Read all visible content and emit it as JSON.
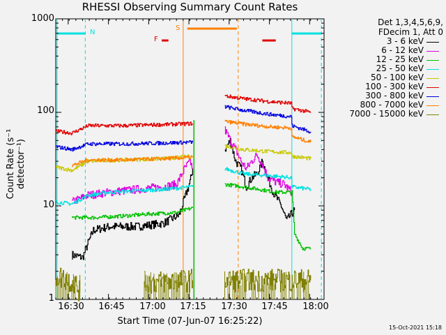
{
  "chart_data": {
    "type": "line",
    "title": "RHESSI Observing Summary Count Rates",
    "xlabel": "Start Time (07-Jun-07 16:25:22)",
    "ylabel": "Count Rate (s⁻¹ detector⁻¹)",
    "yscale": "log",
    "ylim": [
      1,
      1000
    ],
    "xlim_minutes_after_1625": [
      0,
      100
    ],
    "x_ticks": [
      "16:30",
      "16:45",
      "17:00",
      "17:15",
      "17:30",
      "17:45",
      "18:00"
    ],
    "y_ticks": [
      "1",
      "10",
      "100",
      "1000"
    ],
    "legend_header": [
      "Det 1,3,4,5,6,9,",
      "FDecim 1, Att 0"
    ],
    "series": [
      {
        "name": "3 - 6 keV",
        "color": "#000000",
        "segments": [
          [
            [
              6,
              3
            ],
            [
              10,
              2.8
            ],
            [
              12,
              4
            ],
            [
              14,
              5.5
            ],
            [
              20,
              6
            ],
            [
              30,
              6
            ],
            [
              40,
              6.5
            ],
            [
              46,
              8
            ],
            [
              48,
              12
            ],
            [
              50,
              18
            ],
            [
              51,
              25
            ]
          ],
          [
            [
              63,
              40
            ],
            [
              65,
              50
            ],
            [
              67,
              30
            ],
            [
              69,
              25
            ],
            [
              71,
              16
            ],
            [
              73,
              20
            ],
            [
              75,
              22
            ],
            [
              77,
              30
            ],
            [
              79,
              20
            ],
            [
              81,
              14
            ],
            [
              84,
              10
            ],
            [
              86,
              7
            ],
            [
              89,
              9
            ]
          ]
        ]
      },
      {
        "name": "6 - 12 keV",
        "color": "#e000e0",
        "segments": [
          [
            [
              6,
              11
            ],
            [
              12,
              13
            ],
            [
              20,
              14
            ],
            [
              30,
              15
            ],
            [
              40,
              16
            ],
            [
              45,
              17
            ],
            [
              48,
              25
            ],
            [
              50,
              30
            ],
            [
              51,
              25
            ]
          ],
          [
            [
              63,
              65
            ],
            [
              65,
              50
            ],
            [
              67,
              40
            ],
            [
              69,
              30
            ],
            [
              71,
              25
            ],
            [
              73,
              30
            ],
            [
              75,
              35
            ],
            [
              77,
              28
            ],
            [
              79,
              20
            ],
            [
              82,
              18
            ],
            [
              85,
              17
            ],
            [
              88,
              14
            ]
          ]
        ]
      },
      {
        "name": "12 - 25 keV",
        "color": "#00c000",
        "segments": [
          [
            [
              6,
              7.5
            ],
            [
              15,
              7.5
            ],
            [
              25,
              7.8
            ],
            [
              35,
              8.2
            ],
            [
              45,
              8.5
            ],
            [
              51,
              9.5
            ]
          ],
          [
            [
              63,
              17
            ],
            [
              70,
              16
            ],
            [
              76,
              15
            ],
            [
              82,
              14
            ],
            [
              88,
              14
            ],
            [
              89,
              5
            ],
            [
              92,
              3.5
            ],
            [
              95,
              3.5
            ]
          ]
        ]
      },
      {
        "name": "25 - 50 keV",
        "color": "#00e0e0",
        "segments": [
          [
            [
              0,
              11
            ],
            [
              6,
              10.5
            ],
            [
              12,
              13
            ],
            [
              20,
              14
            ],
            [
              30,
              14.5
            ],
            [
              40,
              15
            ],
            [
              51,
              16
            ]
          ],
          [
            [
              63,
              25
            ],
            [
              70,
              22
            ],
            [
              80,
              21
            ],
            [
              88,
              20
            ],
            [
              88,
              16
            ],
            [
              95,
              15
            ]
          ]
        ]
      },
      {
        "name": "50 - 100 keV",
        "color": "#c8c800",
        "segments": [
          [
            [
              0,
              26
            ],
            [
              6,
              24
            ],
            [
              12,
              30
            ],
            [
              25,
              31
            ],
            [
              40,
              32
            ],
            [
              51,
              34
            ]
          ],
          [
            [
              63,
              44
            ],
            [
              70,
              40
            ],
            [
              80,
              38
            ],
            [
              88,
              37
            ],
            [
              88,
              34
            ],
            [
              95,
              32
            ]
          ]
        ]
      },
      {
        "name": "100 - 300 keV",
        "color": "#e00000",
        "segments": [
          [
            [
              0,
              63
            ],
            [
              6,
              60
            ],
            [
              12,
              72
            ],
            [
              25,
              72
            ],
            [
              40,
              74
            ],
            [
              51,
              76
            ]
          ],
          [
            [
              63,
              150
            ],
            [
              70,
              140
            ],
            [
              80,
              130
            ],
            [
              88,
              125
            ],
            [
              88,
              110
            ],
            [
              95,
              100
            ]
          ]
        ]
      },
      {
        "name": "300 - 800 keV",
        "color": "#0000e0",
        "segments": [
          [
            [
              0,
              43
            ],
            [
              6,
              40
            ],
            [
              12,
              46
            ],
            [
              25,
              46
            ],
            [
              40,
              47
            ],
            [
              51,
              48
            ]
          ],
          [
            [
              63,
              115
            ],
            [
              70,
              105
            ],
            [
              80,
              95
            ],
            [
              88,
              90
            ],
            [
              88,
              72
            ],
            [
              95,
              62
            ]
          ]
        ]
      },
      {
        "name": "800 - 7000 keV",
        "color": "#ff8000",
        "segments": [
          [
            [
              6,
              27
            ],
            [
              12,
              31
            ],
            [
              25,
              31
            ],
            [
              40,
              32
            ],
            [
              51,
              33
            ]
          ],
          [
            [
              63,
              80
            ],
            [
              70,
              75
            ],
            [
              80,
              70
            ],
            [
              88,
              68
            ],
            [
              88,
              55
            ],
            [
              95,
              48
            ]
          ]
        ]
      },
      {
        "name": "7000 - 15000 keV",
        "color": "#808000",
        "segments": [
          [
            [
              0,
              1.8
            ],
            [
              7,
              1.5
            ],
            [
              9,
              1.2
            ]
          ],
          [
            [
              33,
              1.5
            ],
            [
              51,
              1.6
            ]
          ],
          [
            [
              63,
              1.6
            ],
            [
              95,
              1.6
            ]
          ]
        ]
      }
    ],
    "annotations": [
      {
        "text": "N",
        "color": "#00e0e0"
      },
      {
        "text": "F",
        "color": "#e00000"
      },
      {
        "text": "S",
        "color": "#ff8000"
      }
    ],
    "timestamp": "15-Oct-2021 15:18"
  }
}
